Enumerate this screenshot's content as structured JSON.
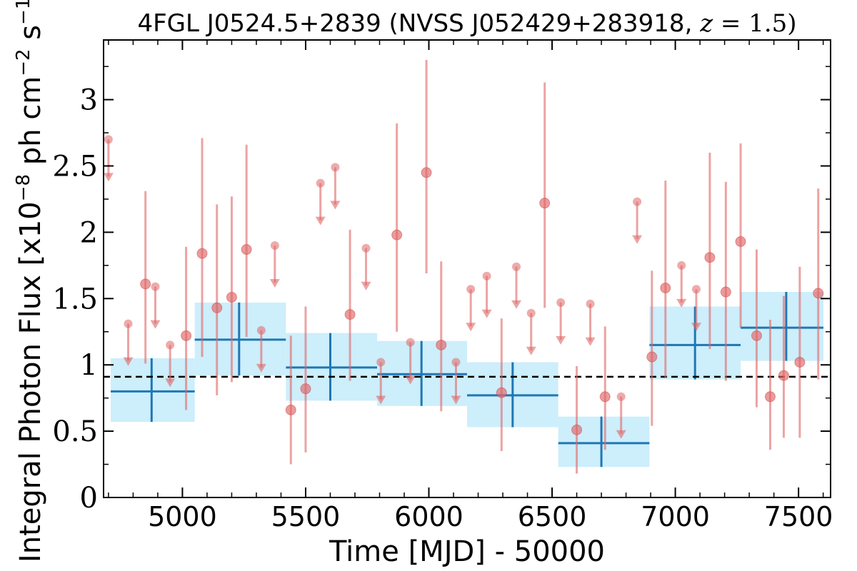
{
  "chart_data": {
    "type": "scatter",
    "title_parts": {
      "main": "4FGL J0524.5+2839 (NVSS J052429+283918, ",
      "z_symbol": "z",
      "z_rest": " = 1.5)"
    },
    "xlabel": "Time [MJD] - 50000",
    "ylabel": "Integral Photon Flux [x10",
    "ylabel_exp1": "−8",
    "ylabel_mid": " ph cm",
    "ylabel_exp2": "−2",
    "ylabel_mid2": " s",
    "ylabel_exp3": "−1",
    "ylabel_end": "]",
    "xlim": [
      4680,
      7630
    ],
    "ylim": [
      0,
      3.45
    ],
    "xticks": [
      5000,
      5500,
      6000,
      6500,
      7000,
      7500
    ],
    "xtick_labels": [
      "5000",
      "5500",
      "6000",
      "6500",
      "7000",
      "7500"
    ],
    "yticks": [
      0,
      0.5,
      1,
      1.5,
      2,
      2.5,
      3
    ],
    "ytick_labels": [
      "0",
      "0.5",
      "1",
      "1.5",
      "2",
      "2.5",
      "3"
    ],
    "mean_flux": 0.91,
    "colors": {
      "points": "#e06666",
      "bins": "#1f77b4",
      "bin_fill": "#cdeefb",
      "mean_line": "#000000"
    },
    "detections": [
      {
        "x": 4850,
        "y": 1.61,
        "ylo": 1.01,
        "yhi": 2.31
      },
      {
        "x": 5015,
        "y": 1.22,
        "ylo": 0.66,
        "yhi": 1.89
      },
      {
        "x": 5080,
        "y": 1.84,
        "ylo": 1.06,
        "yhi": 2.71
      },
      {
        "x": 5140,
        "y": 1.43,
        "ylo": 0.77,
        "yhi": 2.21
      },
      {
        "x": 5200,
        "y": 1.51,
        "ylo": 0.87,
        "yhi": 2.27
      },
      {
        "x": 5260,
        "y": 1.87,
        "ylo": 1.21,
        "yhi": 2.66
      },
      {
        "x": 5440,
        "y": 0.66,
        "ylo": 0.25,
        "yhi": 1.22
      },
      {
        "x": 5500,
        "y": 0.82,
        "ylo": 0.34,
        "yhi": 1.44
      },
      {
        "x": 5680,
        "y": 1.38,
        "ylo": 0.88,
        "yhi": 2.02
      },
      {
        "x": 5870,
        "y": 1.98,
        "ylo": 1.25,
        "yhi": 2.82
      },
      {
        "x": 5990,
        "y": 2.45,
        "ylo": 1.69,
        "yhi": 3.3
      },
      {
        "x": 6050,
        "y": 1.15,
        "ylo": 0.65,
        "yhi": 1.78
      },
      {
        "x": 6295,
        "y": 0.79,
        "ylo": 0.35,
        "yhi": 1.35
      },
      {
        "x": 6470,
        "y": 2.22,
        "ylo": 1.43,
        "yhi": 3.13
      },
      {
        "x": 6600,
        "y": 0.51,
        "ylo": 0.18,
        "yhi": 0.99
      },
      {
        "x": 6715,
        "y": 0.76,
        "ylo": 0.36,
        "yhi": 1.29
      },
      {
        "x": 6905,
        "y": 1.06,
        "ylo": 0.54,
        "yhi": 1.71
      },
      {
        "x": 6960,
        "y": 1.58,
        "ylo": 0.9,
        "yhi": 2.39
      },
      {
        "x": 7140,
        "y": 1.81,
        "ylo": 1.12,
        "yhi": 2.6
      },
      {
        "x": 7205,
        "y": 1.55,
        "ylo": 0.88,
        "yhi": 2.38
      },
      {
        "x": 7265,
        "y": 1.93,
        "ylo": 1.28,
        "yhi": 2.67
      },
      {
        "x": 7330,
        "y": 1.22,
        "ylo": 0.68,
        "yhi": 1.87
      },
      {
        "x": 7385,
        "y": 0.76,
        "ylo": 0.36,
        "yhi": 1.34
      },
      {
        "x": 7440,
        "y": 0.92,
        "ylo": 0.45,
        "yhi": 1.52
      },
      {
        "x": 7505,
        "y": 1.02,
        "ylo": 0.45,
        "yhi": 1.74
      },
      {
        "x": 7580,
        "y": 1.54,
        "ylo": 0.89,
        "yhi": 2.33
      }
    ],
    "upper_limits": [
      {
        "x": 4700,
        "y": 2.7
      },
      {
        "x": 4780,
        "y": 1.31
      },
      {
        "x": 4890,
        "y": 1.59
      },
      {
        "x": 4950,
        "y": 1.15
      },
      {
        "x": 5320,
        "y": 1.26
      },
      {
        "x": 5375,
        "y": 1.9
      },
      {
        "x": 5560,
        "y": 2.37
      },
      {
        "x": 5620,
        "y": 2.49
      },
      {
        "x": 5745,
        "y": 1.88
      },
      {
        "x": 5805,
        "y": 1.02
      },
      {
        "x": 5925,
        "y": 1.17
      },
      {
        "x": 6110,
        "y": 1.02
      },
      {
        "x": 6170,
        "y": 1.57
      },
      {
        "x": 6235,
        "y": 1.67
      },
      {
        "x": 6355,
        "y": 1.74
      },
      {
        "x": 6415,
        "y": 1.39
      },
      {
        "x": 6535,
        "y": 1.47
      },
      {
        "x": 6655,
        "y": 1.46
      },
      {
        "x": 6780,
        "y": 0.76
      },
      {
        "x": 6845,
        "y": 2.23
      },
      {
        "x": 7025,
        "y": 1.75
      },
      {
        "x": 7085,
        "y": 1.57
      }
    ],
    "bins": [
      {
        "x0": 4680,
        "x1": 5050,
        "xc": 4875,
        "y": 0.8,
        "ylo": 0.57,
        "yhi": 1.05
      },
      {
        "x0": 5050,
        "x1": 5420,
        "xc": 5230,
        "y": 1.19,
        "ylo": 0.92,
        "yhi": 1.47
      },
      {
        "x0": 5420,
        "x1": 5790,
        "xc": 5600,
        "y": 0.98,
        "ylo": 0.73,
        "yhi": 1.24
      },
      {
        "x0": 5790,
        "x1": 6155,
        "xc": 5970,
        "y": 0.93,
        "ylo": 0.69,
        "yhi": 1.18
      },
      {
        "x0": 6155,
        "x1": 6525,
        "xc": 6340,
        "y": 0.77,
        "ylo": 0.53,
        "yhi": 1.02
      },
      {
        "x0": 6525,
        "x1": 6895,
        "xc": 6700,
        "y": 0.41,
        "ylo": 0.23,
        "yhi": 0.61
      },
      {
        "x0": 6895,
        "x1": 7265,
        "xc": 7080,
        "y": 1.15,
        "ylo": 0.89,
        "yhi": 1.44
      },
      {
        "x0": 7265,
        "x1": 7635,
        "xc": 7450,
        "y": 1.28,
        "ylo": 1.03,
        "yhi": 1.55
      }
    ]
  }
}
